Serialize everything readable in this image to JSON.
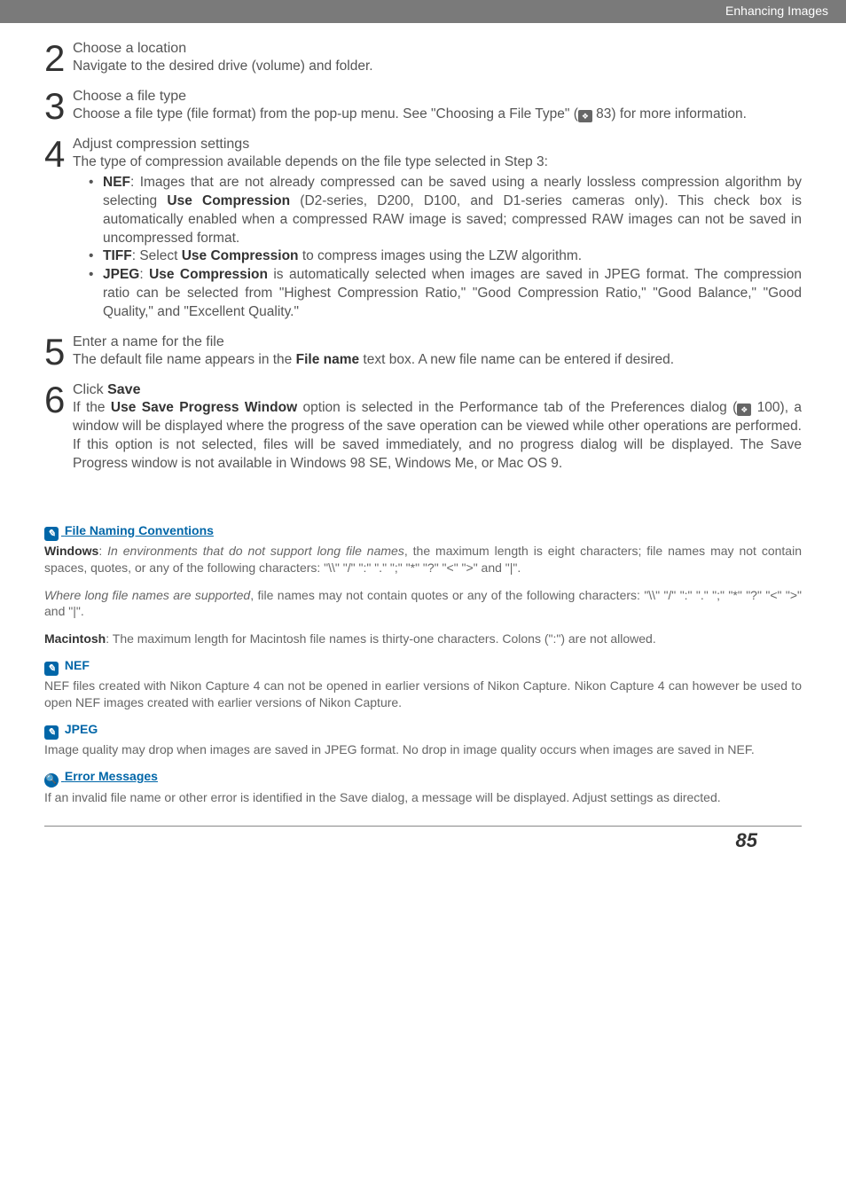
{
  "header": {
    "section": "Enhancing Images"
  },
  "steps": [
    {
      "num": "2",
      "title": "Choose a location",
      "text": "Navigate to the desired drive (volume) and folder."
    },
    {
      "num": "3",
      "title": "Choose a file type",
      "text_before": "Choose a file type (file format) from the pop-up menu. See \"Choosing a File Type\" (",
      "text_after": " 83) for more information."
    },
    {
      "num": "4",
      "title": "Adjust compression settings",
      "text": "The type of compression available depends on the file type selected in Step 3:",
      "bullets": [
        {
          "label": "NEF",
          "rest": ": Images that are not already compressed can be saved using a nearly lossless compression algorithm by selecting ",
          "b2": "Use Compression",
          "rest2": " (D2-series, D200, D100, and D1-series cameras only). This check box is automatically enabled when a compressed RAW image is saved; compressed RAW images can not be saved in uncompressed format."
        },
        {
          "label": "TIFF",
          "rest": ": Select ",
          "b2": "Use Compression",
          "rest2": " to compress images using the LZW algorithm."
        },
        {
          "label": "JPEG",
          "rest": ": ",
          "b2": "Use Compression",
          "rest2": " is automatically selected when images are saved in JPEG format. The compression ratio can be selected from \"Highest Compression Ratio,\" \"Good Compression Ratio,\" \"Good Balance,\" \"Good Quality,\" and \"Excellent Quality.\""
        }
      ]
    },
    {
      "num": "5",
      "title": "Enter a name for the file",
      "text_before": "The default file name appears in the ",
      "bold": "File name",
      "text_after": " text box. A new file name can be entered if desired."
    },
    {
      "num": "6",
      "title_pre": "Click ",
      "title_b": "Save",
      "text_before": "If the ",
      "bold": "Use Save Progress Window",
      "text_mid": " option is selected in the Performance tab of the Preferences dialog (",
      "text_after": " 100), a window will be displayed where the progress of the save operation can be viewed while other operations are performed. If this option is not selected, files will be saved immediately, and no progress dialog will be displayed. The Save Progress window is not available in Windows 98 SE, Windows Me, or Mac OS 9."
    }
  ],
  "notes": {
    "fnc": {
      "head": "File Naming Conventions",
      "win_b": "Windows",
      "win_1": ": ",
      "win_em": "In environments that do not support long file names",
      "win_2": ", the maximum length is eight characters; file names may not contain spaces, quotes, or any of the following characters: \"\\\\\" \"/\" \":\" \".\" \";\" \"*\" \"?\" \"<\" \">\" and \"|\".",
      "long_em": "Where long file names are supported",
      "long_2": ", file names may not contain quotes or any of the following characters: \"\\\\\" \"/\" \":\" \".\" \";\" \"*\" \"?\" \"<\" \">\" and \"|\".",
      "mac_b": "Macintosh",
      "mac_t": ": The maximum length for Macintosh file names is thirty-one characters. Colons (\":\") are not allowed."
    },
    "nef": {
      "head": "NEF",
      "text": "NEF files created with Nikon Capture 4 can not be opened in earlier versions of Nikon Capture. Nikon Capture 4 can however be used to open NEF images created with earlier versions of Nikon Capture."
    },
    "jpeg": {
      "head": "JPEG",
      "text": "Image quality may drop when images are saved in JPEG format. No drop in image quality occurs when images are saved in NEF."
    },
    "err": {
      "head": "Error Messages",
      "text": "If an invalid file name or other error is identified in the Save dialog, a message will be displayed. Adjust settings as directed."
    }
  },
  "page_number": "85"
}
